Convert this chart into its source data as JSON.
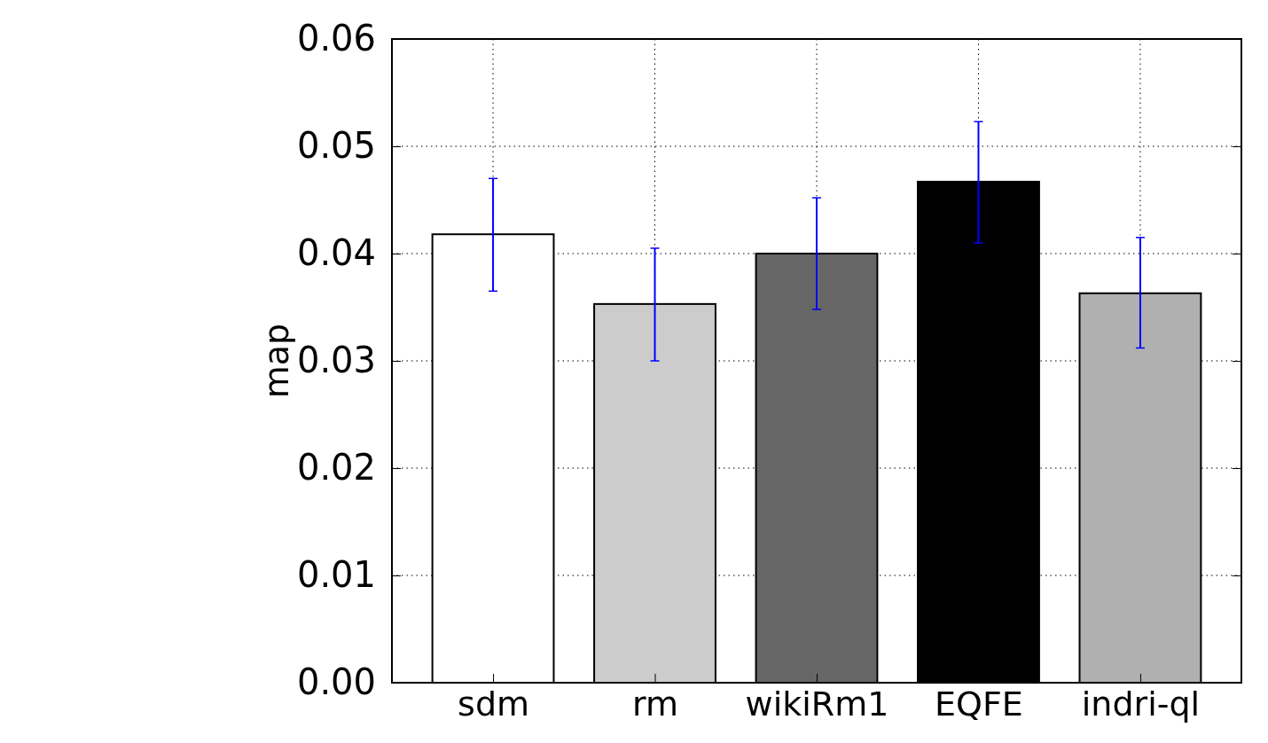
{
  "chart_data": {
    "type": "bar",
    "ylabel": "map",
    "categories": [
      "sdm",
      "rm",
      "wikiRm1",
      "EQFE",
      "indri-ql"
    ],
    "values": [
      0.0418,
      0.0353,
      0.04,
      0.0467,
      0.0363
    ],
    "colors": [
      "#ffffff",
      "#cccccc",
      "#666666",
      "#000000",
      "#b0b0b0"
    ],
    "errors": [
      [
        0.0365,
        0.047
      ],
      [
        0.03,
        0.0405
      ],
      [
        0.0348,
        0.0452
      ],
      [
        0.041,
        0.0523
      ],
      [
        0.0312,
        0.0415
      ]
    ],
    "ylim": [
      0,
      0.06
    ],
    "yticks": [
      {
        "value": 0,
        "label": "0.00"
      },
      {
        "value": 0.01,
        "label": "0.01"
      },
      {
        "value": 0.02,
        "label": "0.02"
      },
      {
        "value": 0.03,
        "label": "0.03"
      },
      {
        "value": 0.04,
        "label": "0.04"
      },
      {
        "value": 0.05,
        "label": "0.05"
      },
      {
        "value": 0.06,
        "label": "0.06"
      }
    ],
    "grid": true
  }
}
